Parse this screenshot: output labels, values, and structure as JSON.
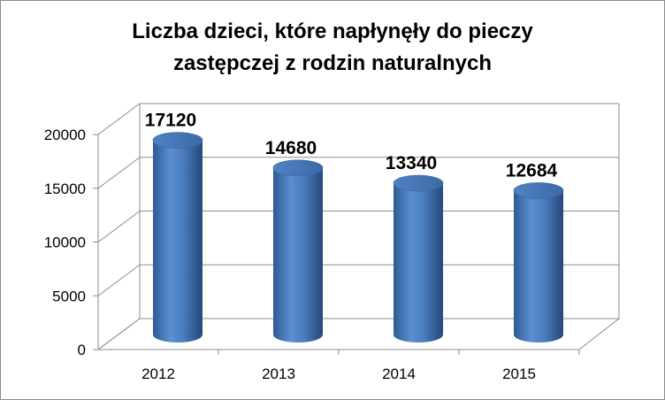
{
  "chart_data": {
    "type": "bar",
    "title_lines": [
      "Liczba dzieci, które napłynęły do pieczy",
      "zastępczej z rodzin naturalnych"
    ],
    "categories": [
      "2012",
      "2013",
      "2014",
      "2015"
    ],
    "values": [
      17120,
      14680,
      13340,
      12684
    ],
    "data_labels": [
      "17120",
      "14680",
      "13340",
      "12684"
    ],
    "y_ticks": [
      "0",
      "5000",
      "10000",
      "15000",
      "20000"
    ],
    "ylim": [
      0,
      20000
    ],
    "grid": true,
    "legend": "none",
    "style": "3d-cylinder",
    "bar_color": "#4a7ebf"
  }
}
